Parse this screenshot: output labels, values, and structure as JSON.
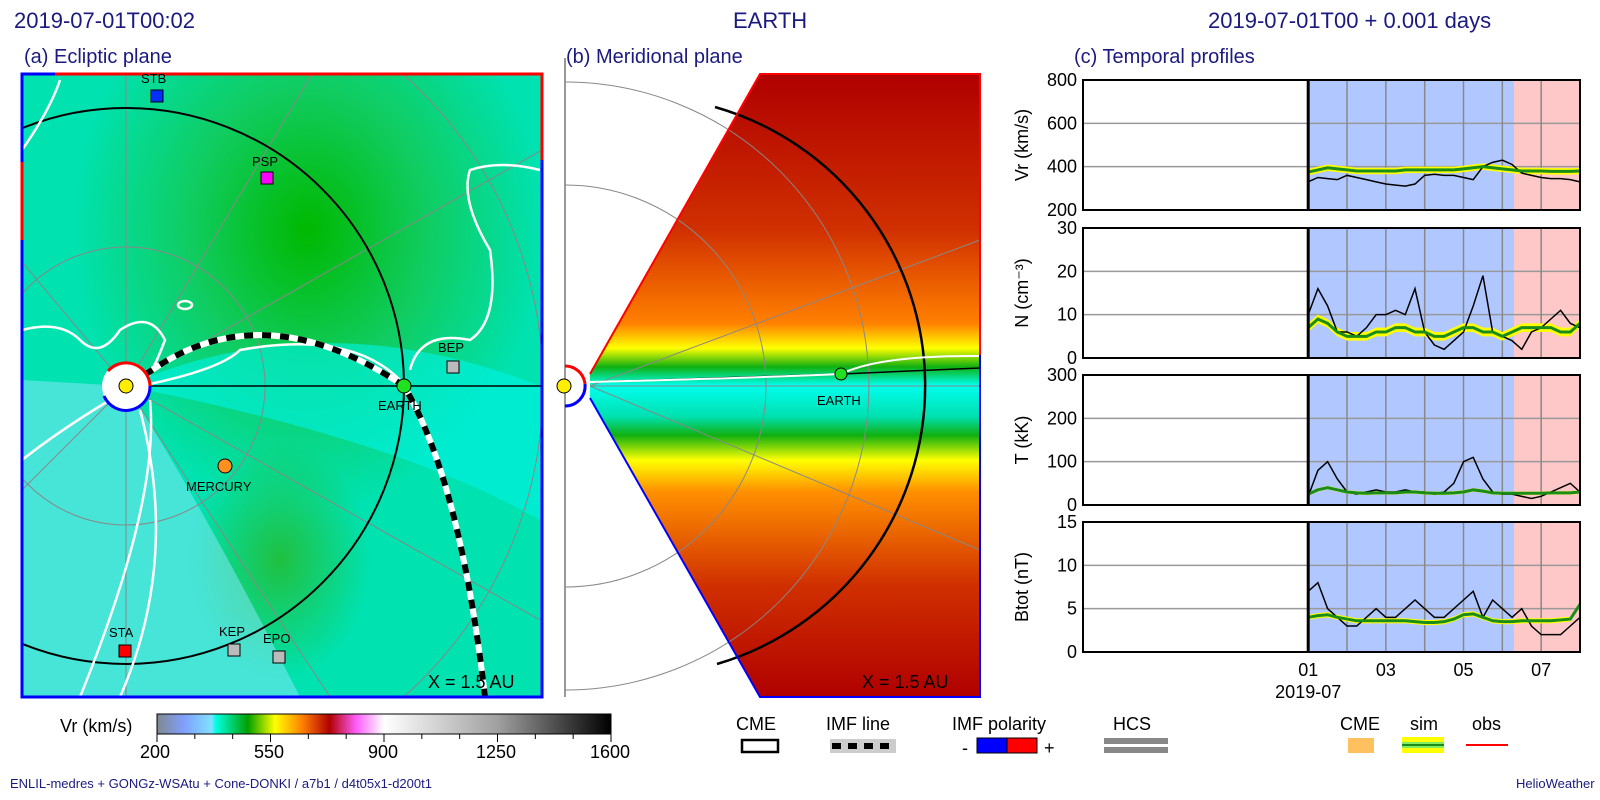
{
  "header": {
    "left_time": "2019-07-01T00:02",
    "center_title": "EARTH",
    "right_time": "2019-07-01T00 +  0.001 days"
  },
  "panels": {
    "a": {
      "title": "(a) Ecliptic plane",
      "scale": "X = 1.5 AU",
      "bodies": [
        "STB",
        "PSP",
        "BEP",
        "EARTH",
        "MERCURY",
        "STA",
        "KEP",
        "EPO"
      ]
    },
    "b": {
      "title": "(b) Meridional plane",
      "scale": "X = 1.5 AU",
      "earth": "EARTH"
    },
    "c": {
      "title": "(c) Temporal profiles"
    }
  },
  "colorbar": {
    "label": "Vr (km/s)",
    "ticks": [
      "200",
      "550",
      "900",
      "1250",
      "1600"
    ]
  },
  "legend": {
    "cme": "CME",
    "imf_line": "IMF line",
    "imf_polarity": "IMF polarity",
    "minus": "-",
    "plus": "+",
    "hcs": "HCS",
    "cme2": "CME",
    "sim": "sim",
    "obs": "obs"
  },
  "colors": {
    "title": "#1a1a80",
    "cme_fill": "#ffc060",
    "sim": "#1a8c1a",
    "sim_band": "#ffff00",
    "obs": "#000000",
    "obs_legend": "#ff0000",
    "pre_bg": "#b0c8ff",
    "post_bg": "#ffc8c8"
  },
  "footer": {
    "left": "ENLIL-medres + GONGz-WSAtu + Cone-DONKI / a7b1 / d4t05x1-d200t1",
    "right": "HelioWeather"
  },
  "chart_data": {
    "type": "line",
    "xlabel_ticks": [
      "01",
      "03",
      "05",
      "07"
    ],
    "xlabel_month": "2019-07",
    "x_unit": "days since 2019-07-01T00",
    "xlim": [
      -5.8,
      7.0
    ],
    "shaded": {
      "blue": [
        0,
        5.3
      ],
      "pink": [
        5.3,
        7.0
      ]
    },
    "x_start": 0,
    "x_step": 0.25,
    "panels": [
      {
        "ylabel": "Vr (km/s)",
        "ylim": [
          200,
          800
        ],
        "yticks": [
          "200",
          "400",
          "600",
          "800"
        ],
        "grid": [
          400,
          600
        ],
        "obs": [
          330,
          350,
          345,
          340,
          360,
          350,
          340,
          330,
          320,
          315,
          310,
          320,
          360,
          365,
          360,
          360,
          350,
          340,
          400,
          420,
          430,
          410,
          370,
          360,
          350,
          345,
          345,
          340,
          330
        ],
        "sim": [
          375,
          385,
          395,
          390,
          385,
          380,
          380,
          380,
          380,
          380,
          385,
          385,
          385,
          385,
          385,
          385,
          390,
          395,
          400,
          395,
          390,
          385,
          380,
          380,
          380,
          378,
          378,
          378,
          380
        ],
        "band": 15
      },
      {
        "ylabel": "N (cm⁻³)",
        "ylim": [
          0,
          30
        ],
        "yticks": [
          "0",
          "10",
          "20",
          "30"
        ],
        "grid": [
          10,
          20
        ],
        "obs": [
          10,
          16,
          12,
          6,
          6,
          5,
          7,
          10,
          10,
          11,
          10,
          16,
          6,
          3,
          2,
          4,
          6,
          12,
          19,
          6,
          5,
          4,
          2,
          6,
          7,
          9,
          11,
          8,
          7
        ],
        "sim": [
          7,
          9,
          8,
          6,
          5,
          5,
          5,
          6,
          6,
          7,
          7,
          6,
          6,
          5,
          5,
          6,
          7,
          7,
          6,
          6,
          5,
          6,
          7,
          7,
          7,
          7,
          6,
          6,
          8
        ],
        "band": 1
      },
      {
        "ylabel": "T (kK)",
        "ylim": [
          0,
          300
        ],
        "yticks": [
          "0",
          "100",
          "200",
          "300"
        ],
        "grid": [
          100,
          200
        ],
        "obs": [
          20,
          80,
          100,
          60,
          30,
          25,
          30,
          35,
          30,
          30,
          35,
          30,
          30,
          25,
          30,
          50,
          100,
          110,
          60,
          30,
          25,
          25,
          20,
          15,
          20,
          30,
          40,
          50,
          30
        ],
        "sim": [
          25,
          35,
          40,
          35,
          30,
          28,
          27,
          28,
          28,
          28,
          30,
          30,
          28,
          27,
          27,
          28,
          30,
          35,
          32,
          28,
          27,
          27,
          27,
          27,
          27,
          28,
          28,
          28,
          30
        ],
        "band": 4
      },
      {
        "ylabel": "Btot (nT)",
        "ylim": [
          0,
          15
        ],
        "yticks": [
          "0",
          "5",
          "10",
          "15"
        ],
        "grid": [
          5,
          10
        ],
        "obs": [
          7,
          8,
          5,
          4,
          3,
          3,
          4,
          5,
          4,
          4,
          5,
          6,
          5,
          4,
          4,
          5,
          6,
          7,
          4,
          6,
          5,
          4,
          5,
          3,
          2,
          2,
          2,
          3,
          4
        ],
        "sim": [
          4,
          4.2,
          4.3,
          4,
          3.8,
          3.6,
          3.6,
          3.6,
          3.6,
          3.6,
          3.6,
          3.5,
          3.4,
          3.4,
          3.5,
          3.8,
          4.3,
          4.4,
          4,
          3.6,
          3.5,
          3.5,
          3.6,
          3.6,
          3.6,
          3.6,
          3.7,
          3.8,
          5.5
        ],
        "band": 0.3
      }
    ]
  }
}
